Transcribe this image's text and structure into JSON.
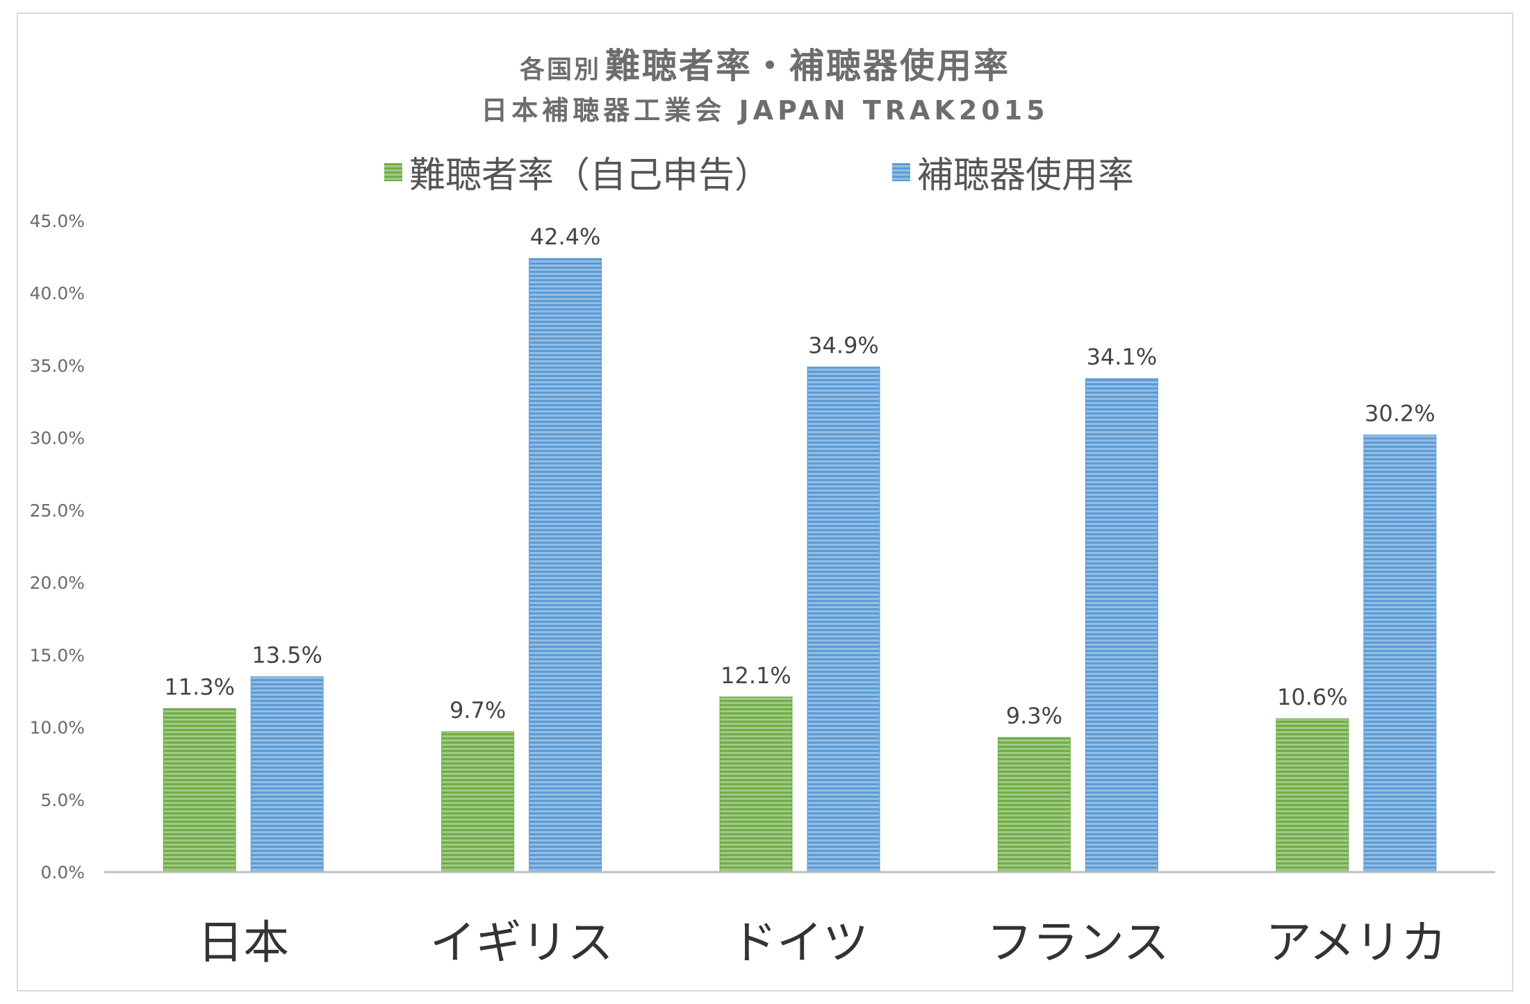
{
  "chart_data": {
    "type": "bar",
    "title": "難聴者率・補聴器使用率",
    "title_prefix": "各国別",
    "subtitle": "日本補聴器工業会 JAPAN TRAK2015",
    "categories": [
      "日本",
      "イギリス",
      "ドイツ",
      "フランス",
      "アメリカ"
    ],
    "series": [
      {
        "name": "難聴者率（自己申告）",
        "values": [
          11.3,
          9.7,
          12.1,
          9.3,
          10.6
        ],
        "color": "#70ad47"
      },
      {
        "name": "補聴器使用率",
        "values": [
          13.5,
          42.4,
          34.9,
          34.1,
          30.2
        ],
        "color": "#5b9bd5"
      }
    ],
    "data_labels": [
      [
        "11.3%",
        "9.7%",
        "12.1%",
        "9.3%",
        "10.6%"
      ],
      [
        "13.5%",
        "42.4%",
        "34.9%",
        "34.1%",
        "30.2%"
      ]
    ],
    "yticks": [
      "0.0%",
      "5.0%",
      "10.0%",
      "15.0%",
      "20.0%",
      "25.0%",
      "30.0%",
      "35.0%",
      "40.0%",
      "45.0%"
    ],
    "ylim": [
      0,
      45
    ],
    "ystep": 5,
    "grid": false,
    "legend_position": "top",
    "xlabel": "",
    "ylabel": ""
  }
}
